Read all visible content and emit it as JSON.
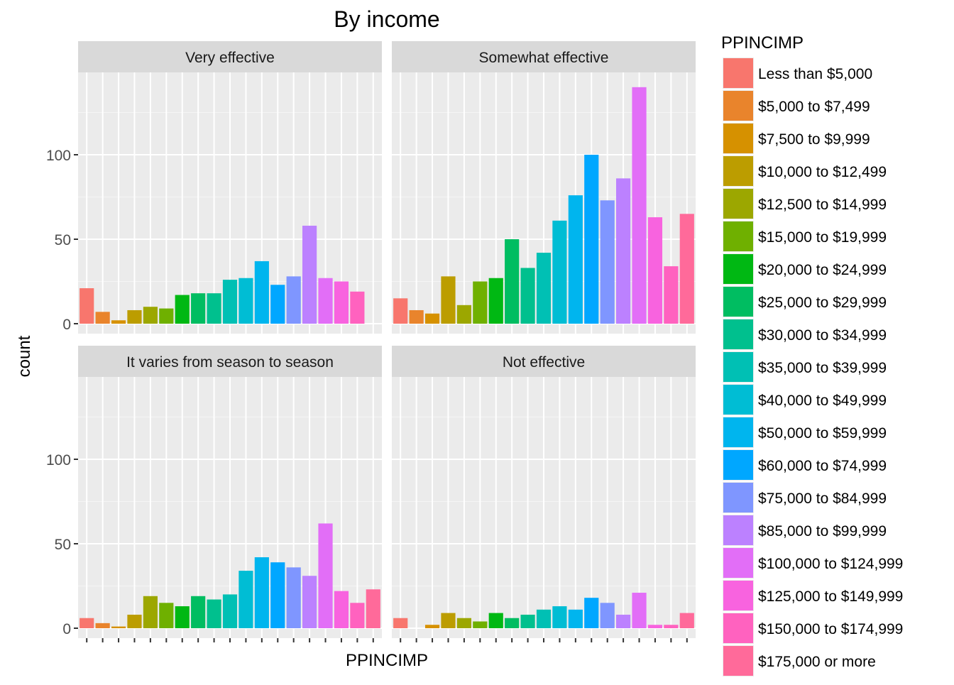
{
  "chart_data": {
    "type": "bar",
    "title": "By income",
    "xlabel": "PPINCIMP",
    "ylabel": "count",
    "ylim": [
      0,
      148
    ],
    "y_ticks": [
      0,
      50,
      100
    ],
    "grid": true,
    "legend": {
      "title": "PPINCIMP",
      "position": "right"
    },
    "categories": [
      "Less than $5,000",
      "$5,000 to $7,499",
      "$7,500 to $9,999",
      "$10,000 to $12,499",
      "$12,500 to $14,999",
      "$15,000 to $19,999",
      "$20,000 to $24,999",
      "$25,000 to $29,999",
      "$30,000 to $34,999",
      "$35,000 to $39,999",
      "$40,000 to $49,999",
      "$50,000 to $59,999",
      "$60,000 to $74,999",
      "$75,000 to $84,999",
      "$85,000 to $99,999",
      "$100,000 to $124,999",
      "$125,000 to $149,999",
      "$150,000 to $174,999",
      "$175,000 or more"
    ],
    "colors": [
      "#F8766D",
      "#E9842C",
      "#D69100",
      "#BC9D00",
      "#9CA700",
      "#6FB000",
      "#00B813",
      "#00BD61",
      "#00C08E",
      "#00C0B4",
      "#00BDD4",
      "#00B5EE",
      "#00A7FF",
      "#7F96FF",
      "#BC81FF",
      "#E26EF7",
      "#F863DF",
      "#FF62BF",
      "#FF6A9A"
    ],
    "panels": [
      {
        "label": "Very effective",
        "values": [
          21,
          7,
          2,
          8,
          10,
          9,
          17,
          18,
          18,
          26,
          27,
          37,
          23,
          28,
          58,
          27,
          25,
          19,
          null
        ]
      },
      {
        "label": "Somewhat effective",
        "values": [
          15,
          8,
          6,
          28,
          11,
          25,
          27,
          50,
          33,
          42,
          61,
          76,
          100,
          73,
          86,
          140,
          63,
          34,
          65
        ]
      },
      {
        "label": "It varies from season to season",
        "values": [
          6,
          3,
          1,
          8,
          19,
          15,
          13,
          19,
          17,
          20,
          34,
          42,
          39,
          36,
          31,
          62,
          22,
          15,
          23
        ]
      },
      {
        "label": "Not effective",
        "values": [
          6,
          null,
          2,
          9,
          6,
          4,
          9,
          6,
          8,
          11,
          13,
          11,
          18,
          15,
          8,
          21,
          2,
          2,
          9
        ]
      }
    ]
  }
}
